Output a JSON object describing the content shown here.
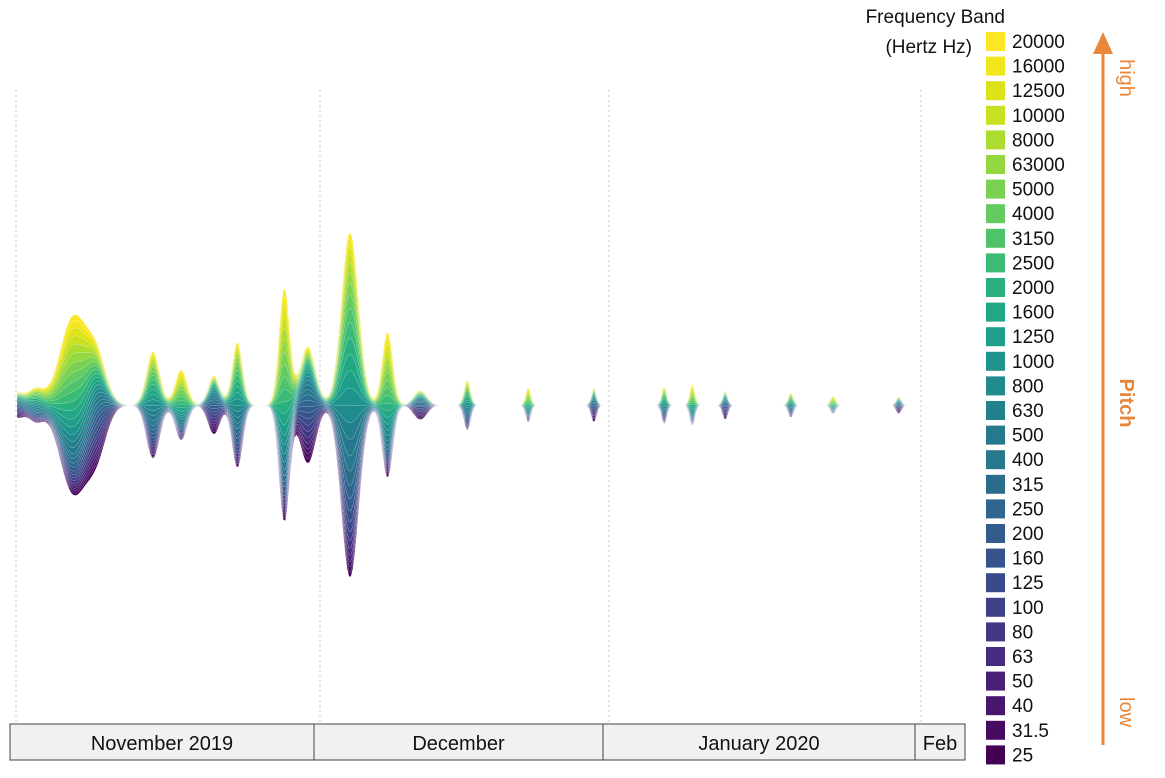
{
  "chart_data": {
    "type": "area",
    "layout": "streamgraph",
    "x_axis": {
      "labels": [
        "November 2019",
        "December",
        "January 2020",
        "Feb"
      ]
    },
    "legend": {
      "title_line1": "Frequency Band",
      "title_line2": "(Hertz Hz)",
      "placement": "right",
      "entries": [
        {
          "label": "20000",
          "color": "#fde725"
        },
        {
          "label": "16000",
          "color": "#f1e51d"
        },
        {
          "label": "12500",
          "color": "#dde318"
        },
        {
          "label": "10000",
          "color": "#c8e020"
        },
        {
          "label": "8000",
          "color": "#addc30"
        },
        {
          "label": "63000",
          "color": "#93d741"
        },
        {
          "label": "5000",
          "color": "#7ad151"
        },
        {
          "label": "4000",
          "color": "#63cb5f"
        },
        {
          "label": "3150",
          "color": "#4ec36b"
        },
        {
          "label": "2500",
          "color": "#3bbb75"
        },
        {
          "label": "2000",
          "color": "#2ab07f"
        },
        {
          "label": "1600",
          "color": "#22a785"
        },
        {
          "label": "1250",
          "color": "#1f9e89"
        },
        {
          "label": "1000",
          "color": "#1f948c"
        },
        {
          "label": "800",
          "color": "#218a8d"
        },
        {
          "label": "630",
          "color": "#23818e"
        },
        {
          "label": "500",
          "color": "#26788e"
        },
        {
          "label": "400",
          "color": "#29798e"
        },
        {
          "label": "315",
          "color": "#2c6d8e"
        },
        {
          "label": "250",
          "color": "#2f658e"
        },
        {
          "label": "200",
          "color": "#335c8d"
        },
        {
          "label": "160",
          "color": "#37538b"
        },
        {
          "label": "125",
          "color": "#3b4a89"
        },
        {
          "label": "100",
          "color": "#3f4187"
        },
        {
          "label": "80",
          "color": "#433683"
        },
        {
          "label": "63",
          "color": "#462b7e"
        },
        {
          "label": "50",
          "color": "#482076"
        },
        {
          "label": "40",
          "color": "#48166c"
        },
        {
          "label": "31.5",
          "color": "#470c5f"
        },
        {
          "label": "25",
          "color": "#440154"
        }
      ]
    },
    "pitch_annotation": {
      "top": "high",
      "middle": "Pitch",
      "bottom": "low",
      "color": "#e8863a"
    },
    "events": [
      {
        "t": 0.0,
        "a": 0.04,
        "w": 0.01
      },
      {
        "t": 0.02,
        "a": 0.05,
        "w": 0.012
      },
      {
        "t": 0.06,
        "a": 0.3,
        "w": 0.02
      },
      {
        "t": 0.085,
        "a": 0.15,
        "w": 0.015
      },
      {
        "t": 0.145,
        "a": 0.17,
        "w": 0.01
      },
      {
        "t": 0.175,
        "a": 0.12,
        "w": 0.009
      },
      {
        "t": 0.21,
        "a": 0.1,
        "w": 0.009
      },
      {
        "t": 0.235,
        "a": 0.2,
        "w": 0.008
      },
      {
        "t": 0.285,
        "a": 0.4,
        "w": 0.008
      },
      {
        "t": 0.31,
        "a": 0.2,
        "w": 0.012
      },
      {
        "t": 0.355,
        "a": 0.55,
        "w": 0.013
      },
      {
        "t": 0.395,
        "a": 0.25,
        "w": 0.008
      },
      {
        "t": 0.43,
        "a": 0.05,
        "w": 0.01
      },
      {
        "t": 0.48,
        "a": 0.08,
        "w": 0.005
      },
      {
        "t": 0.545,
        "a": 0.06,
        "w": 0.004
      },
      {
        "t": 0.615,
        "a": 0.06,
        "w": 0.004
      },
      {
        "t": 0.69,
        "a": 0.06,
        "w": 0.004
      },
      {
        "t": 0.72,
        "a": 0.07,
        "w": 0.004
      },
      {
        "t": 0.755,
        "a": 0.05,
        "w": 0.004
      },
      {
        "t": 0.825,
        "a": 0.04,
        "w": 0.004
      },
      {
        "t": 0.87,
        "a": 0.03,
        "w": 0.004
      },
      {
        "t": 0.94,
        "a": 0.03,
        "w": 0.004
      }
    ]
  }
}
